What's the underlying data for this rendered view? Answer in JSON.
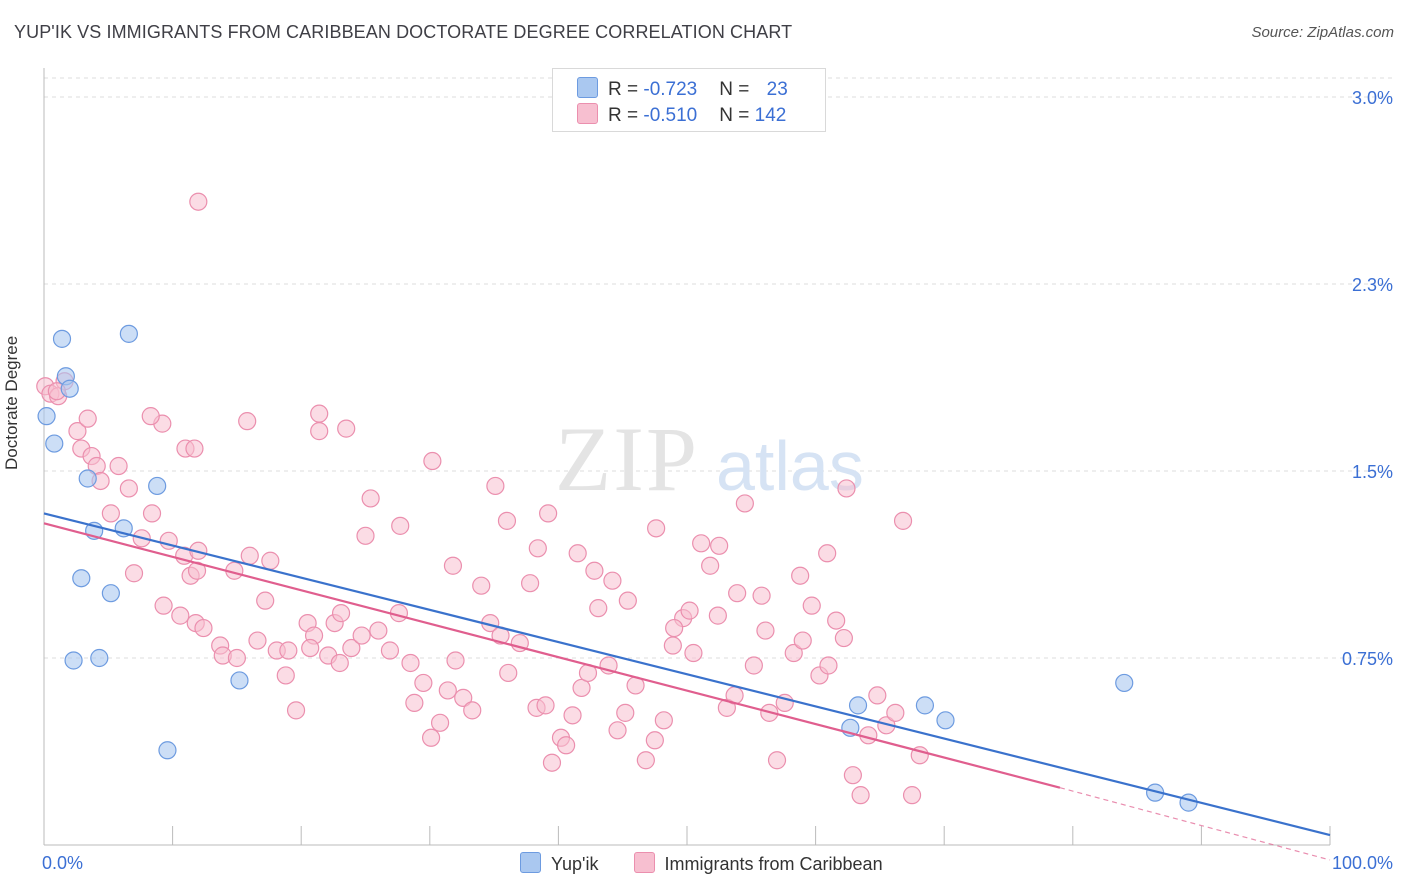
{
  "title": "YUP'IK VS IMMIGRANTS FROM CARIBBEAN DOCTORATE DEGREE CORRELATION CHART",
  "source": "Source: ZipAtlas.com",
  "watermark": "ZIPatlas",
  "colors": {
    "yupik_fill": "#aac8f0",
    "yupik_stroke": "#6d9be0",
    "yupik_line": "#3a72cc",
    "carib_fill": "#f7bfd0",
    "carib_stroke": "#eb8fae",
    "carib_line": "#e05e8e",
    "axis_text": "#3b6fd4",
    "grid": "#dddddd"
  },
  "legend": {
    "rows": [
      {
        "r_label": "R = ",
        "r_value": "-0.723",
        "n_label": "N = ",
        "n_value": "23"
      },
      {
        "r_label": "R = ",
        "r_value": "-0.510",
        "n_label": "N = ",
        "n_value": "142"
      }
    ]
  },
  "bottom_legend": {
    "yupik": "Yup'ik",
    "carib": "Immigrants from Caribbean"
  },
  "chart_data": {
    "type": "scatter",
    "xlabel": "",
    "ylabel": "Doctorate Degree",
    "xlim": [
      0,
      100
    ],
    "ylim": [
      0,
      3.0
    ],
    "x_tick_labels": [
      "0.0%",
      "100.0%"
    ],
    "y_ticks": [
      0.75,
      1.5,
      2.25,
      3.0
    ],
    "y_tick_labels": [
      "0.75%",
      "1.5%",
      "2.3%",
      "3.0%"
    ],
    "grid": "horizontal dashed",
    "series": [
      {
        "name": "Yup'ik",
        "r": -0.723,
        "n": 23,
        "trend": {
          "x0": 0,
          "y0": 1.33,
          "x1": 100,
          "y1": 0.04
        },
        "points": [
          [
            0.2,
            1.72
          ],
          [
            1.4,
            2.03
          ],
          [
            1.7,
            1.88
          ],
          [
            0.8,
            1.61
          ],
          [
            3.4,
            1.47
          ],
          [
            3.9,
            1.26
          ],
          [
            6.6,
            2.05
          ],
          [
            6.2,
            1.27
          ],
          [
            8.8,
            1.44
          ],
          [
            2.9,
            1.07
          ],
          [
            5.2,
            1.01
          ],
          [
            2.3,
            0.74
          ],
          [
            4.3,
            0.75
          ],
          [
            15.2,
            0.66
          ],
          [
            9.6,
            0.38
          ],
          [
            62.7,
            0.47
          ],
          [
            68.5,
            0.56
          ],
          [
            70.1,
            0.5
          ],
          [
            63.3,
            0.56
          ],
          [
            84.0,
            0.65
          ],
          [
            86.4,
            0.21
          ],
          [
            89.0,
            0.17
          ],
          [
            2.0,
            1.83
          ]
        ]
      },
      {
        "name": "Immigrants from Caribbean",
        "r": -0.51,
        "n": 142,
        "trend": {
          "x0": 0,
          "y0": 1.29,
          "x1": 79,
          "y1": 0.23
        },
        "trend_dashed": {
          "x0": 79,
          "y0": 0.23,
          "x1": 100,
          "y1": -0.06
        },
        "points": [
          [
            0.1,
            1.84
          ],
          [
            0.5,
            1.81
          ],
          [
            1.1,
            1.8
          ],
          [
            1.6,
            1.86
          ],
          [
            1.0,
            1.82
          ],
          [
            2.6,
            1.66
          ],
          [
            2.9,
            1.59
          ],
          [
            3.7,
            1.56
          ],
          [
            4.1,
            1.52
          ],
          [
            4.4,
            1.46
          ],
          [
            3.4,
            1.71
          ],
          [
            5.2,
            1.33
          ],
          [
            6.6,
            1.43
          ],
          [
            7.6,
            1.23
          ],
          [
            8.4,
            1.33
          ],
          [
            9.2,
            1.69
          ],
          [
            9.7,
            1.22
          ],
          [
            11.0,
            1.59
          ],
          [
            10.9,
            1.16
          ],
          [
            11.4,
            1.08
          ],
          [
            12.0,
            1.18
          ],
          [
            7.0,
            1.09
          ],
          [
            5.8,
            1.52
          ],
          [
            8.3,
            1.72
          ],
          [
            11.7,
            1.59
          ],
          [
            11.9,
            1.1
          ],
          [
            9.3,
            0.96
          ],
          [
            10.6,
            0.92
          ],
          [
            11.8,
            0.89
          ],
          [
            12.4,
            0.87
          ],
          [
            13.7,
            0.8
          ],
          [
            13.9,
            0.76
          ],
          [
            15.0,
            0.75
          ],
          [
            14.8,
            1.1
          ],
          [
            16.0,
            1.16
          ],
          [
            17.2,
            0.98
          ],
          [
            17.6,
            1.14
          ],
          [
            18.1,
            0.78
          ],
          [
            19.0,
            0.78
          ],
          [
            18.8,
            0.68
          ],
          [
            19.6,
            0.54
          ],
          [
            20.5,
            0.89
          ],
          [
            21.0,
            0.84
          ],
          [
            20.7,
            0.79
          ],
          [
            22.1,
            0.76
          ],
          [
            22.6,
            0.89
          ],
          [
            23.1,
            0.93
          ],
          [
            23.9,
            0.79
          ],
          [
            24.7,
            0.84
          ],
          [
            25.4,
            1.39
          ],
          [
            25.0,
            1.24
          ],
          [
            26.0,
            0.86
          ],
          [
            26.9,
            0.78
          ],
          [
            27.6,
            0.93
          ],
          [
            28.5,
            0.73
          ],
          [
            28.8,
            0.57
          ],
          [
            29.5,
            0.65
          ],
          [
            30.1,
            0.43
          ],
          [
            30.8,
            0.49
          ],
          [
            31.4,
            0.62
          ],
          [
            32.0,
            0.74
          ],
          [
            32.6,
            0.59
          ],
          [
            33.3,
            0.54
          ],
          [
            34.0,
            1.04
          ],
          [
            34.7,
            0.89
          ],
          [
            35.5,
            0.84
          ],
          [
            36.1,
            0.69
          ],
          [
            37.0,
            0.81
          ],
          [
            37.8,
            1.05
          ],
          [
            38.3,
            0.55
          ],
          [
            39.0,
            0.56
          ],
          [
            39.5,
            0.33
          ],
          [
            40.2,
            0.43
          ],
          [
            40.6,
            0.4
          ],
          [
            41.1,
            0.52
          ],
          [
            41.8,
            0.63
          ],
          [
            42.3,
            0.69
          ],
          [
            43.1,
            0.95
          ],
          [
            43.9,
            0.72
          ],
          [
            44.6,
            0.46
          ],
          [
            45.2,
            0.53
          ],
          [
            46.0,
            0.64
          ],
          [
            46.8,
            0.34
          ],
          [
            47.5,
            0.42
          ],
          [
            48.2,
            0.5
          ],
          [
            48.9,
            0.8
          ],
          [
            49.7,
            0.91
          ],
          [
            50.5,
            0.77
          ],
          [
            51.1,
            1.21
          ],
          [
            51.8,
            1.12
          ],
          [
            52.4,
            0.92
          ],
          [
            53.1,
            0.55
          ],
          [
            53.7,
            0.6
          ],
          [
            54.5,
            1.37
          ],
          [
            55.2,
            0.72
          ],
          [
            55.8,
            1.0
          ],
          [
            56.4,
            0.53
          ],
          [
            57.0,
            0.34
          ],
          [
            57.6,
            0.57
          ],
          [
            58.3,
            0.77
          ],
          [
            59.0,
            0.82
          ],
          [
            59.7,
            0.96
          ],
          [
            60.3,
            0.68
          ],
          [
            61.0,
            0.72
          ],
          [
            61.6,
            0.9
          ],
          [
            62.2,
            0.83
          ],
          [
            62.9,
            0.28
          ],
          [
            63.5,
            0.2
          ],
          [
            64.1,
            0.44
          ],
          [
            64.8,
            0.6
          ],
          [
            65.5,
            0.48
          ],
          [
            66.2,
            0.53
          ],
          [
            66.8,
            1.3
          ],
          [
            67.5,
            0.2
          ],
          [
            68.1,
            0.36
          ],
          [
            21.4,
            1.66
          ],
          [
            23.5,
            1.67
          ],
          [
            30.2,
            1.54
          ],
          [
            35.1,
            1.44
          ],
          [
            36.0,
            1.3
          ],
          [
            38.4,
            1.19
          ],
          [
            39.2,
            1.33
          ],
          [
            41.5,
            1.17
          ],
          [
            42.8,
            1.1
          ],
          [
            44.2,
            1.06
          ],
          [
            45.4,
            0.98
          ],
          [
            47.6,
            1.27
          ],
          [
            49.0,
            0.87
          ],
          [
            50.2,
            0.94
          ],
          [
            52.5,
            1.2
          ],
          [
            53.9,
            1.01
          ],
          [
            56.1,
            0.86
          ],
          [
            58.8,
            1.08
          ],
          [
            60.9,
            1.17
          ],
          [
            62.4,
            1.43
          ],
          [
            12.0,
            2.58
          ],
          [
            21.4,
            1.73
          ],
          [
            15.8,
            1.7
          ],
          [
            16.6,
            0.82
          ],
          [
            23.0,
            0.73
          ],
          [
            27.7,
            1.28
          ],
          [
            31.8,
            1.12
          ]
        ]
      }
    ]
  }
}
